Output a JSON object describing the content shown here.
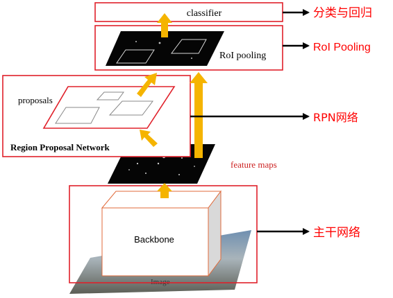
{
  "labels": {
    "classifier": "classifier",
    "roi_pooling": "RoI pooling",
    "proposals": "proposals",
    "rpn_title": "Region Proposal Network",
    "feature_maps": "feature maps",
    "backbone": "Backbone",
    "image": "Image"
  },
  "annotations": {
    "classification_regression": "分类与回归",
    "roi_pooling": "RoI Pooling",
    "rpn": "RPN网络",
    "backbone": "主干网络"
  },
  "colors": {
    "frame": "#e0202a",
    "arrow_up": "#f5b400",
    "arrow_right": "#000000",
    "annotation": "#ff0000",
    "feature_feature": "#e8e8e8"
  }
}
